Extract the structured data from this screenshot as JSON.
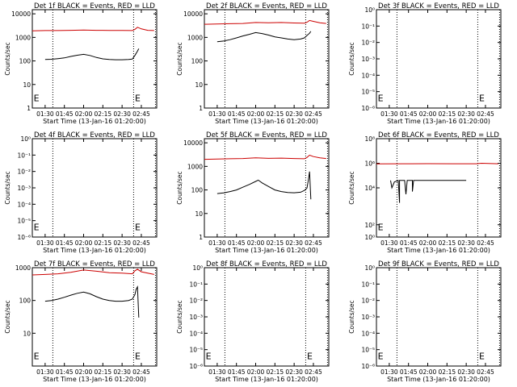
{
  "chart_data": [
    {
      "type": "line",
      "title": "Det 1f BLACK = Events, RED = LLD",
      "xlabel": "Start Time (13-Jan-16 01:20:00)",
      "ylabel": "Counts/sec",
      "xticks": [
        "01:30",
        "01:45",
        "02:00",
        "02:15",
        "02:30",
        "02:45"
      ],
      "yticks": [
        "1",
        "10",
        "100",
        "1000",
        "10000"
      ],
      "ylim": [
        1,
        15000
      ],
      "yscale": "log",
      "vlines": [
        "01:36",
        "02:39",
        "02:56"
      ],
      "flags": [
        "E",
        "E"
      ],
      "series": [
        {
          "color": "#000000",
          "x": [
            "01:30",
            "01:35",
            "01:40",
            "01:45",
            "01:50",
            "01:55",
            "02:00",
            "02:05",
            "02:10",
            "02:15",
            "02:20",
            "02:25",
            "02:30",
            "02:35",
            "02:38",
            "02:40",
            "02:42",
            "02:43"
          ],
          "y": [
            115,
            118,
            125,
            135,
            155,
            175,
            190,
            170,
            140,
            122,
            115,
            112,
            112,
            115,
            120,
            170,
            260,
            330
          ]
        },
        {
          "color": "#cc0000",
          "x": [
            "01:20",
            "01:30",
            "01:40",
            "01:50",
            "02:00",
            "02:10",
            "02:20",
            "02:30",
            "02:38",
            "02:40",
            "02:42",
            "02:45",
            "02:50",
            "02:55"
          ],
          "y": [
            1900,
            1950,
            1950,
            2000,
            2050,
            2000,
            1980,
            1980,
            1950,
            2200,
            2700,
            2300,
            2000,
            1950
          ]
        }
      ]
    },
    {
      "type": "line",
      "title": "Det 2f BLACK = Events, RED = LLD",
      "xlabel": "Start Time (13-Jan-16 01:20:00)",
      "ylabel": "Counts/sec",
      "xticks": [
        "01:30",
        "01:45",
        "02:00",
        "02:15",
        "02:30",
        "02:45"
      ],
      "yticks": [
        "1",
        "10",
        "100",
        "1000",
        "10000"
      ],
      "ylim": [
        1,
        15000
      ],
      "yscale": "log",
      "vlines": [
        "01:36",
        "02:39",
        "02:56"
      ],
      "flags": [],
      "series": [
        {
          "color": "#000000",
          "x": [
            "01:30",
            "01:35",
            "01:40",
            "01:45",
            "01:50",
            "01:55",
            "02:00",
            "02:05",
            "02:10",
            "02:15",
            "02:20",
            "02:25",
            "02:30",
            "02:35",
            "02:38",
            "02:40",
            "02:42",
            "02:43"
          ],
          "y": [
            650,
            700,
            800,
            950,
            1150,
            1350,
            1600,
            1450,
            1250,
            1050,
            950,
            850,
            800,
            850,
            950,
            1200,
            1500,
            1800
          ]
        },
        {
          "color": "#cc0000",
          "x": [
            "01:20",
            "01:30",
            "01:40",
            "01:50",
            "02:00",
            "02:10",
            "02:20",
            "02:30",
            "02:38",
            "02:40",
            "02:42",
            "02:45",
            "02:50",
            "02:55"
          ],
          "y": [
            3600,
            3700,
            3800,
            3900,
            4300,
            4200,
            4300,
            4100,
            4000,
            4400,
            5200,
            4800,
            4200,
            3900
          ]
        }
      ]
    },
    {
      "type": "line",
      "title": "Det 3f BLACK = Events, RED = LLD",
      "xlabel": "Start Time (13-Jan-16 01:20:00)",
      "ylabel": "Counts/sec",
      "xticks": [
        "01:30",
        "01:45",
        "02:00",
        "02:15",
        "02:30",
        "02:45"
      ],
      "yticks": [
        "10⁻⁶",
        "10⁻⁵",
        "10⁻⁴",
        "10⁻³",
        "10⁻²",
        "10⁻¹",
        "10⁰"
      ],
      "ylim": [
        1e-06,
        1
      ],
      "yscale": "log",
      "vlines": [
        "01:36",
        "02:39",
        "02:56"
      ],
      "flags": [
        "E",
        "E"
      ],
      "series": []
    },
    {
      "type": "line",
      "title": "Det 4f BLACK = Events, RED = LLD",
      "xlabel": "Start Time (13-Jan-16 01:20:00)",
      "ylabel": "Counts/sec",
      "xticks": [
        "01:30",
        "01:45",
        "02:00",
        "02:15",
        "02:30",
        "02:45"
      ],
      "yticks": [
        "10⁻⁶",
        "10⁻⁵",
        "10⁻⁴",
        "10⁻³",
        "10⁻²",
        "10⁻¹",
        "10⁰"
      ],
      "ylim": [
        1e-06,
        1
      ],
      "yscale": "log",
      "vlines": [
        "01:36",
        "02:39",
        "02:56"
      ],
      "flags": [
        "E",
        "E"
      ],
      "series": []
    },
    {
      "type": "line",
      "title": "Det 5f BLACK = Events, RED = LLD",
      "xlabel": "Start Time (13-Jan-16 01:20:00)",
      "ylabel": "Counts/sec",
      "xticks": [
        "01:30",
        "01:45",
        "02:00",
        "02:15",
        "02:30",
        "02:45"
      ],
      "yticks": [
        "1",
        "10",
        "100",
        "1000",
        "10000"
      ],
      "ylim": [
        1,
        15000
      ],
      "yscale": "log",
      "vlines": [
        "01:36",
        "02:39",
        "02:56"
      ],
      "flags": [],
      "series": [
        {
          "color": "#000000",
          "x": [
            "01:30",
            "01:35",
            "01:40",
            "01:45",
            "01:50",
            "01:55",
            "02:00",
            "02:02",
            "02:05",
            "02:10",
            "02:15",
            "02:20",
            "02:25",
            "02:30",
            "02:35",
            "02:38",
            "02:40",
            "02:41",
            "02:42",
            "02:43"
          ],
          "y": [
            70,
            75,
            85,
            100,
            130,
            170,
            230,
            260,
            200,
            140,
            100,
            85,
            78,
            76,
            80,
            95,
            120,
            250,
            600,
            40
          ]
        },
        {
          "color": "#cc0000",
          "x": [
            "01:20",
            "01:30",
            "01:40",
            "01:50",
            "02:00",
            "02:10",
            "02:20",
            "02:30",
            "02:38",
            "02:40",
            "02:42",
            "02:45",
            "02:50",
            "02:55"
          ],
          "y": [
            2000,
            2050,
            2100,
            2150,
            2300,
            2200,
            2250,
            2150,
            2100,
            2400,
            3000,
            2600,
            2300,
            2150
          ]
        }
      ]
    },
    {
      "type": "line",
      "title": "Det 6f BLACK = Events, RED = LLD",
      "xlabel": "Start Time (13-Jan-16 01:20:00)",
      "ylabel": "Counts/sec",
      "xticks": [
        "01:30",
        "01:45",
        "02:00",
        "02:15",
        "02:30",
        "02:45"
      ],
      "yticks": [
        "10⁰",
        "10²",
        "10⁴",
        "10⁶",
        "10⁸"
      ],
      "ylim": [
        1,
        100000000
      ],
      "yscale": "log",
      "vlines": [
        "01:36",
        "02:39",
        "02:56"
      ],
      "flags": [
        "E"
      ],
      "series": [
        {
          "color": "#000000",
          "x": [
            "01:31",
            "01:32",
            "01:34",
            "01:37",
            "01:38",
            "01:38",
            "01:42",
            "01:43",
            "01:44",
            "01:48",
            "01:48",
            "01:49",
            "01:53",
            "01:55",
            "02:00",
            "02:10",
            "02:20",
            "02:30"
          ],
          "y": [
            40000,
            10000,
            30000,
            40000,
            600,
            40000,
            40000,
            3000,
            40000,
            40000,
            5000,
            40000,
            40000,
            40000,
            40000,
            40000,
            40000,
            40000
          ]
        },
        {
          "color": "#cc0000",
          "x": [
            "01:20",
            "01:40",
            "02:00",
            "02:20",
            "02:38",
            "02:40",
            "02:42",
            "02:55"
          ],
          "y": [
            900000,
            920000,
            930000,
            920000,
            910000,
            950000,
            1000000,
            920000
          ]
        }
      ]
    },
    {
      "type": "line",
      "title": "Det 7f BLACK = Events, RED = LLD",
      "xlabel": "Start Time (13-Jan-16 01:20:00)",
      "ylabel": "Counts/sec",
      "xticks": [
        "01:30",
        "01:45",
        "02:00",
        "02:15",
        "02:30",
        "02:45"
      ],
      "yticks": [
        "10",
        "100",
        "1000"
      ],
      "ylim": [
        1,
        1000
      ],
      "yscale": "log",
      "vlines": [
        "01:36",
        "02:39",
        "02:56"
      ],
      "flags": [
        "E",
        "E"
      ],
      "series": [
        {
          "color": "#000000",
          "x": [
            "01:30",
            "01:35",
            "01:40",
            "01:45",
            "01:50",
            "01:55",
            "02:00",
            "02:05",
            "02:10",
            "02:15",
            "02:20",
            "02:25",
            "02:30",
            "02:35",
            "02:38",
            "02:40",
            "02:41",
            "02:42",
            "02:43"
          ],
          "y": [
            95,
            100,
            110,
            125,
            145,
            165,
            180,
            160,
            130,
            110,
            100,
            95,
            95,
            100,
            110,
            150,
            220,
            260,
            30
          ]
        },
        {
          "color": "#cc0000",
          "x": [
            "01:20",
            "01:30",
            "01:40",
            "01:50",
            "02:00",
            "02:10",
            "02:20",
            "02:30",
            "02:38",
            "02:40",
            "02:42",
            "02:45",
            "02:50",
            "02:55"
          ],
          "y": [
            600,
            620,
            650,
            720,
            850,
            780,
            700,
            680,
            650,
            800,
            900,
            750,
            680,
            620
          ]
        }
      ]
    },
    {
      "type": "line",
      "title": "Det 8f BLACK = Events, RED = LLD",
      "xlabel": "Start Time (13-Jan-16 01:20:00)",
      "ylabel": "Counts/sec",
      "xticks": [
        "01:30",
        "01:45",
        "02:00",
        "02:15",
        "02:30",
        "02:45"
      ],
      "yticks": [
        "10⁻⁶",
        "10⁻⁵",
        "10⁻⁴",
        "10⁻³",
        "10⁻²",
        "10⁻¹",
        "10⁰"
      ],
      "ylim": [
        1e-06,
        1
      ],
      "yscale": "log",
      "vlines": [
        "01:36",
        "02:39",
        "02:56"
      ],
      "flags": [
        "E",
        "E"
      ],
      "series": []
    },
    {
      "type": "line",
      "title": "Det 9f BLACK = Events, RED = LLD",
      "xlabel": "Start Time (13-Jan-16 01:20:00)",
      "ylabel": "Counts/sec",
      "xticks": [
        "01:30",
        "01:45",
        "02:00",
        "02:15",
        "02:30",
        "02:45"
      ],
      "yticks": [
        "10⁻⁶",
        "10⁻⁵",
        "10⁻⁴",
        "10⁻³",
        "10⁻²",
        "10⁻¹",
        "10⁰"
      ],
      "ylim": [
        1e-06,
        1
      ],
      "yscale": "log",
      "vlines": [
        "01:36",
        "02:39",
        "02:56"
      ],
      "flags": [
        "E",
        "E"
      ],
      "series": []
    }
  ]
}
